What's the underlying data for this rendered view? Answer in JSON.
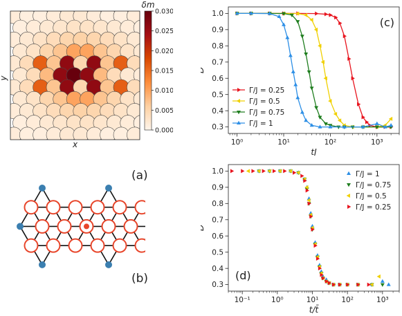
{
  "chart_data": [
    {
      "id": "a",
      "type": "heatmap",
      "panel_label": "(a)",
      "xlabel": "x",
      "ylabel": "y",
      "colorbar": {
        "label": "δm",
        "ticks": [
          "0.000",
          "0.005",
          "0.010",
          "0.015",
          "0.020",
          "0.025",
          "0.030"
        ],
        "range": [
          0,
          0.03
        ],
        "colors": [
          "#fff5eb",
          "#fdd0a2",
          "#fd8d3c",
          "#d94801",
          "#a50f15",
          "#67000d"
        ]
      },
      "grid": {
        "cols": 11,
        "rows": 11
      },
      "disks": [
        {
          "i": 0,
          "j": 0,
          "v": 0.0015
        },
        {
          "i": 1,
          "j": 0,
          "v": 0.001
        },
        {
          "i": 2,
          "j": 0,
          "v": 0.001
        },
        {
          "i": 3,
          "j": 0,
          "v": 0.0015
        },
        {
          "i": 4,
          "j": 0,
          "v": 0.002
        },
        {
          "i": 5,
          "j": 0,
          "v": 0.002
        },
        {
          "i": 6,
          "j": 0,
          "v": 0.0015
        },
        {
          "i": 7,
          "j": 0,
          "v": 0.001
        },
        {
          "i": 8,
          "j": 0,
          "v": 0.001
        },
        {
          "i": 9,
          "j": 0,
          "v": 0.0015
        },
        {
          "i": 10,
          "j": 0,
          "v": 0.001
        },
        {
          "i": 0,
          "j": 1,
          "v": 0.001
        },
        {
          "i": 1,
          "j": 1,
          "v": 0.0015
        },
        {
          "i": 2,
          "j": 1,
          "v": 0.002
        },
        {
          "i": 3,
          "j": 1,
          "v": 0.0025
        },
        {
          "i": 4,
          "j": 1,
          "v": 0.003
        },
        {
          "i": 5,
          "j": 1,
          "v": 0.003
        },
        {
          "i": 6,
          "j": 1,
          "v": 0.0025
        },
        {
          "i": 7,
          "j": 1,
          "v": 0.002
        },
        {
          "i": 8,
          "j": 1,
          "v": 0.0015
        },
        {
          "i": 9,
          "j": 1,
          "v": 0.001
        },
        {
          "i": 0,
          "j": 2,
          "v": 0.0015
        },
        {
          "i": 1,
          "j": 2,
          "v": 0.002
        },
        {
          "i": 2,
          "j": 2,
          "v": 0.003
        },
        {
          "i": 3,
          "j": 2,
          "v": 0.004
        },
        {
          "i": 4,
          "j": 2,
          "v": 0.005
        },
        {
          "i": 5,
          "j": 2,
          "v": 0.0055
        },
        {
          "i": 6,
          "j": 2,
          "v": 0.005
        },
        {
          "i": 7,
          "j": 2,
          "v": 0.004
        },
        {
          "i": 8,
          "j": 2,
          "v": 0.003
        },
        {
          "i": 9,
          "j": 2,
          "v": 0.002
        },
        {
          "i": 10,
          "j": 2,
          "v": 0.0015
        },
        {
          "i": 0,
          "j": 3,
          "v": 0.002
        },
        {
          "i": 1,
          "j": 3,
          "v": 0.003
        },
        {
          "i": 2,
          "j": 3,
          "v": 0.005
        },
        {
          "i": 3,
          "j": 3,
          "v": 0.007
        },
        {
          "i": 4,
          "j": 3,
          "v": 0.01
        },
        {
          "i": 5,
          "j": 3,
          "v": 0.01
        },
        {
          "i": 6,
          "j": 3,
          "v": 0.007
        },
        {
          "i": 7,
          "j": 3,
          "v": 0.005
        },
        {
          "i": 8,
          "j": 3,
          "v": 0.003
        },
        {
          "i": 9,
          "j": 3,
          "v": 0.002
        },
        {
          "i": 0,
          "j": 4,
          "v": 0.002
        },
        {
          "i": 1,
          "j": 4,
          "v": 0.004
        },
        {
          "i": 2,
          "j": 4,
          "v": 0.016
        },
        {
          "i": 3,
          "j": 4,
          "v": 0.007
        },
        {
          "i": 4,
          "j": 4,
          "v": 0.026
        },
        {
          "i": 5,
          "j": 4,
          "v": 0.005
        },
        {
          "i": 6,
          "j": 4,
          "v": 0.026
        },
        {
          "i": 7,
          "j": 4,
          "v": 0.007
        },
        {
          "i": 8,
          "j": 4,
          "v": 0.016
        },
        {
          "i": 9,
          "j": 4,
          "v": 0.004
        },
        {
          "i": 10,
          "j": 4,
          "v": 0.002
        },
        {
          "i": 0,
          "j": 5,
          "v": 0.002
        },
        {
          "i": 1,
          "j": 5,
          "v": 0.004
        },
        {
          "i": 2,
          "j": 5,
          "v": 0.008
        },
        {
          "i": 3,
          "j": 5,
          "v": 0.026
        },
        {
          "i": 4,
          "j": 5,
          "v": 0.03
        },
        {
          "i": 5,
          "j": 5,
          "v": 0.026
        },
        {
          "i": 6,
          "j": 5,
          "v": 0.008
        },
        {
          "i": 7,
          "j": 5,
          "v": 0.004
        },
        {
          "i": 8,
          "j": 5,
          "v": 0.002
        },
        {
          "i": 9,
          "j": 5,
          "v": 0.0015
        },
        {
          "i": 0,
          "j": 6,
          "v": 0.002
        },
        {
          "i": 1,
          "j": 6,
          "v": 0.004
        },
        {
          "i": 2,
          "j": 6,
          "v": 0.016
        },
        {
          "i": 3,
          "j": 6,
          "v": 0.007
        },
        {
          "i": 4,
          "j": 6,
          "v": 0.026
        },
        {
          "i": 5,
          "j": 6,
          "v": 0.005
        },
        {
          "i": 6,
          "j": 6,
          "v": 0.026
        },
        {
          "i": 7,
          "j": 6,
          "v": 0.007
        },
        {
          "i": 8,
          "j": 6,
          "v": 0.016
        },
        {
          "i": 9,
          "j": 6,
          "v": 0.004
        },
        {
          "i": 10,
          "j": 6,
          "v": 0.002
        },
        {
          "i": 0,
          "j": 7,
          "v": 0.002
        },
        {
          "i": 1,
          "j": 7,
          "v": 0.003
        },
        {
          "i": 2,
          "j": 7,
          "v": 0.005
        },
        {
          "i": 3,
          "j": 7,
          "v": 0.007
        },
        {
          "i": 4,
          "j": 7,
          "v": 0.01
        },
        {
          "i": 5,
          "j": 7,
          "v": 0.01
        },
        {
          "i": 6,
          "j": 7,
          "v": 0.007
        },
        {
          "i": 7,
          "j": 7,
          "v": 0.005
        },
        {
          "i": 8,
          "j": 7,
          "v": 0.003
        },
        {
          "i": 9,
          "j": 7,
          "v": 0.002
        },
        {
          "i": 0,
          "j": 8,
          "v": 0.0015
        },
        {
          "i": 1,
          "j": 8,
          "v": 0.002
        },
        {
          "i": 2,
          "j": 8,
          "v": 0.003
        },
        {
          "i": 3,
          "j": 8,
          "v": 0.004
        },
        {
          "i": 4,
          "j": 8,
          "v": 0.005
        },
        {
          "i": 5,
          "j": 8,
          "v": 0.0055
        },
        {
          "i": 6,
          "j": 8,
          "v": 0.005
        },
        {
          "i": 7,
          "j": 8,
          "v": 0.004
        },
        {
          "i": 8,
          "j": 8,
          "v": 0.003
        },
        {
          "i": 9,
          "j": 8,
          "v": 0.002
        },
        {
          "i": 10,
          "j": 8,
          "v": 0.0015
        },
        {
          "i": 0,
          "j": 9,
          "v": 0.001
        },
        {
          "i": 1,
          "j": 9,
          "v": 0.0015
        },
        {
          "i": 2,
          "j": 9,
          "v": 0.002
        },
        {
          "i": 3,
          "j": 9,
          "v": 0.0025
        },
        {
          "i": 4,
          "j": 9,
          "v": 0.003
        },
        {
          "i": 5,
          "j": 9,
          "v": 0.003
        },
        {
          "i": 6,
          "j": 9,
          "v": 0.0025
        },
        {
          "i": 7,
          "j": 9,
          "v": 0.002
        },
        {
          "i": 8,
          "j": 9,
          "v": 0.0015
        },
        {
          "i": 9,
          "j": 9,
          "v": 0.001
        },
        {
          "i": 0,
          "j": 10,
          "v": 0.0015
        },
        {
          "i": 1,
          "j": 10,
          "v": 0.001
        },
        {
          "i": 2,
          "j": 10,
          "v": 0.001
        },
        {
          "i": 3,
          "j": 10,
          "v": 0.0015
        },
        {
          "i": 4,
          "j": 10,
          "v": 0.002
        },
        {
          "i": 5,
          "j": 10,
          "v": 0.002
        },
        {
          "i": 6,
          "j": 10,
          "v": 0.0015
        },
        {
          "i": 7,
          "j": 10,
          "v": 0.001
        },
        {
          "i": 8,
          "j": 10,
          "v": 0.001
        },
        {
          "i": 9,
          "j": 10,
          "v": 0.0015
        },
        {
          "i": 10,
          "j": 10,
          "v": 0.001
        }
      ]
    },
    {
      "id": "b",
      "type": "diagram",
      "panel_label": "(b)",
      "colors": {
        "lattice": "#111111",
        "ring": "#e8452a",
        "endpoint": "#3b7fb0"
      }
    },
    {
      "id": "c",
      "type": "line",
      "panel_label": "(c)",
      "xlabel": "tJ",
      "ylabel": "D",
      "xscale": "log",
      "xlim": [
        0.65,
        3000
      ],
      "ylim": [
        0.26,
        1.04
      ],
      "xticks": [
        {
          "v": 1,
          "label": "10⁰"
        },
        {
          "v": 10,
          "label": "10¹"
        },
        {
          "v": 100,
          "label": "10²"
        },
        {
          "v": 1000,
          "label": "10³"
        }
      ],
      "yticks": [
        0.3,
        0.4,
        0.5,
        0.6,
        0.7,
        0.8,
        0.9,
        1.0
      ],
      "legend_position": "lower-left",
      "series": [
        {
          "name": "Γ/J = 0.25",
          "color": "#e8141e",
          "marker": "tri-right",
          "x": [
            1,
            2,
            5,
            10,
            20,
            50,
            80,
            100,
            130,
            160,
            200,
            250,
            300,
            400,
            500,
            600,
            700,
            1000,
            1500,
            2000
          ],
          "y": [
            1.0,
            1.0,
            1.0,
            1.0,
            1.0,
            0.999,
            0.995,
            0.99,
            0.975,
            0.94,
            0.86,
            0.72,
            0.6,
            0.44,
            0.36,
            0.33,
            0.31,
            0.3,
            0.3,
            0.3
          ]
        },
        {
          "name": "Γ/J = 0.5",
          "color": "#f0d000",
          "marker": "tri-left",
          "x": [
            1,
            2,
            5,
            10,
            20,
            30,
            40,
            50,
            60,
            70,
            80,
            100,
            130,
            160,
            200,
            300,
            500,
            1000,
            1500,
            2000
          ],
          "y": [
            1.0,
            1.0,
            1.0,
            1.0,
            0.999,
            0.99,
            0.96,
            0.9,
            0.8,
            0.7,
            0.6,
            0.46,
            0.38,
            0.34,
            0.31,
            0.3,
            0.3,
            0.3,
            0.31,
            0.35
          ]
        },
        {
          "name": "Γ/J = 0.75",
          "color": "#1e7d1e",
          "marker": "tri-down",
          "x": [
            1,
            2,
            5,
            10,
            15,
            20,
            25,
            30,
            35,
            40,
            50,
            60,
            80,
            100,
            150,
            200,
            300,
            500,
            1000,
            2000
          ],
          "y": [
            1.0,
            1.0,
            1.0,
            0.999,
            0.99,
            0.95,
            0.86,
            0.75,
            0.64,
            0.54,
            0.42,
            0.36,
            0.32,
            0.31,
            0.3,
            0.3,
            0.3,
            0.3,
            0.3,
            0.3
          ]
        },
        {
          "name": "Γ/J = 1",
          "color": "#2d8fe6",
          "marker": "tri-up",
          "x": [
            1,
            2,
            5,
            8,
            10,
            12,
            14,
            16,
            18,
            20,
            25,
            30,
            40,
            60,
            100,
            200,
            500,
            1000,
            1500,
            2000
          ],
          "y": [
            1.0,
            1.0,
            0.999,
            0.98,
            0.93,
            0.85,
            0.74,
            0.64,
            0.56,
            0.48,
            0.39,
            0.34,
            0.31,
            0.3,
            0.3,
            0.3,
            0.3,
            0.32,
            0.3,
            0.31
          ]
        }
      ]
    },
    {
      "id": "d",
      "type": "scatter",
      "panel_label": "(d)",
      "xlabel": "t/t̄",
      "ylabel": "D",
      "xscale": "log",
      "xlim": [
        0.04,
        3000
      ],
      "ylim": [
        0.26,
        1.04
      ],
      "xticks": [
        {
          "v": 0.1,
          "label": "10⁻¹"
        },
        {
          "v": 1,
          "label": "10⁰"
        },
        {
          "v": 10,
          "label": "10¹"
        },
        {
          "v": 100,
          "label": "10²"
        },
        {
          "v": 1000,
          "label": "10³"
        }
      ],
      "yticks": [
        0.3,
        0.4,
        0.5,
        0.6,
        0.7,
        0.8,
        0.9,
        1.0
      ],
      "legend_position": "upper-right",
      "series": [
        {
          "name": "Γ/J = 1",
          "color": "#2d8fe6",
          "marker": "tri-up",
          "x": [
            0.3,
            0.6,
            1.2,
            2.4,
            4,
            6,
            7,
            8,
            9,
            10,
            12,
            14,
            16,
            18,
            20,
            25,
            30,
            40,
            60,
            100,
            200,
            500,
            1000,
            1500
          ],
          "y": [
            1.0,
            1.0,
            1.0,
            1.0,
            0.99,
            0.95,
            0.9,
            0.83,
            0.74,
            0.66,
            0.56,
            0.48,
            0.42,
            0.38,
            0.35,
            0.33,
            0.31,
            0.3,
            0.3,
            0.3,
            0.3,
            0.3,
            0.32,
            0.3
          ]
        },
        {
          "name": "Γ/J = 0.75",
          "color": "#1e7d1e",
          "marker": "tri-down",
          "x": [
            0.3,
            0.6,
            1.2,
            2.4,
            4,
            6,
            7,
            8,
            9,
            10,
            12,
            14,
            16,
            18,
            20,
            25,
            30,
            40,
            60,
            100,
            200,
            500,
            1000
          ],
          "y": [
            1.0,
            1.0,
            1.0,
            1.0,
            0.99,
            0.95,
            0.89,
            0.8,
            0.72,
            0.64,
            0.55,
            0.47,
            0.41,
            0.37,
            0.34,
            0.32,
            0.31,
            0.3,
            0.3,
            0.3,
            0.3,
            0.3,
            0.3
          ]
        },
        {
          "name": "Γ/J = 0.5",
          "color": "#f0d000",
          "marker": "tri-left",
          "x": [
            0.15,
            0.3,
            0.6,
            1.2,
            2.4,
            4,
            6,
            7,
            8,
            9,
            10,
            12,
            14,
            16,
            18,
            20,
            25,
            30,
            40,
            60,
            100,
            200,
            500,
            800
          ],
          "y": [
            1.0,
            1.0,
            1.0,
            1.0,
            1.0,
            0.99,
            0.95,
            0.9,
            0.82,
            0.73,
            0.65,
            0.55,
            0.47,
            0.41,
            0.37,
            0.34,
            0.32,
            0.31,
            0.3,
            0.3,
            0.3,
            0.3,
            0.3,
            0.35
          ]
        },
        {
          "name": "Γ/J = 0.25",
          "color": "#e8141e",
          "marker": "tri-right",
          "x": [
            0.05,
            0.1,
            0.2,
            0.4,
            0.8,
            1.6,
            3,
            5,
            6,
            7,
            8,
            9,
            10,
            12,
            14,
            16,
            18,
            20,
            25,
            30,
            40,
            60,
            100,
            200,
            400
          ],
          "y": [
            1.0,
            1.0,
            1.0,
            1.0,
            1.0,
            1.0,
            0.99,
            0.97,
            0.94,
            0.88,
            0.8,
            0.72,
            0.64,
            0.54,
            0.46,
            0.4,
            0.36,
            0.34,
            0.32,
            0.31,
            0.3,
            0.3,
            0.3,
            0.3,
            0.3
          ]
        }
      ]
    }
  ]
}
